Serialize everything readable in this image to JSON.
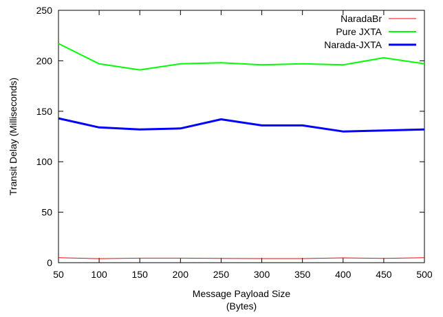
{
  "chart_data": {
    "type": "line",
    "title": "",
    "xlabel": "Message Payload Size",
    "xlabel_unit": "(Bytes)",
    "ylabel": "Transit Delay  (Milliseconds)",
    "xlim": [
      50,
      500
    ],
    "ylim": [
      0,
      250
    ],
    "x_ticks": [
      50,
      100,
      150,
      200,
      250,
      300,
      350,
      400,
      450,
      500
    ],
    "y_ticks": [
      0,
      50,
      100,
      150,
      200,
      250
    ],
    "grid": false,
    "legend_position": "top-right",
    "x": [
      50,
      100,
      150,
      200,
      250,
      300,
      350,
      400,
      450,
      500
    ],
    "series": [
      {
        "name": "NaradaBr",
        "color": "#ff0000",
        "width": "thin",
        "values": [
          5,
          4,
          4.5,
          4.5,
          4.3,
          4.1,
          4.1,
          4.8,
          4.2,
          5
        ]
      },
      {
        "name": "Pure JXTA",
        "color": "#00ff00",
        "width": "medium",
        "values": [
          217,
          197,
          191,
          197,
          198,
          196,
          197,
          196,
          203,
          197
        ]
      },
      {
        "name": "Narada-JXTA",
        "color": "#0000ff",
        "width": "thick",
        "values": [
          143,
          134,
          132,
          133,
          142,
          136,
          136,
          130,
          131,
          132
        ]
      }
    ]
  }
}
